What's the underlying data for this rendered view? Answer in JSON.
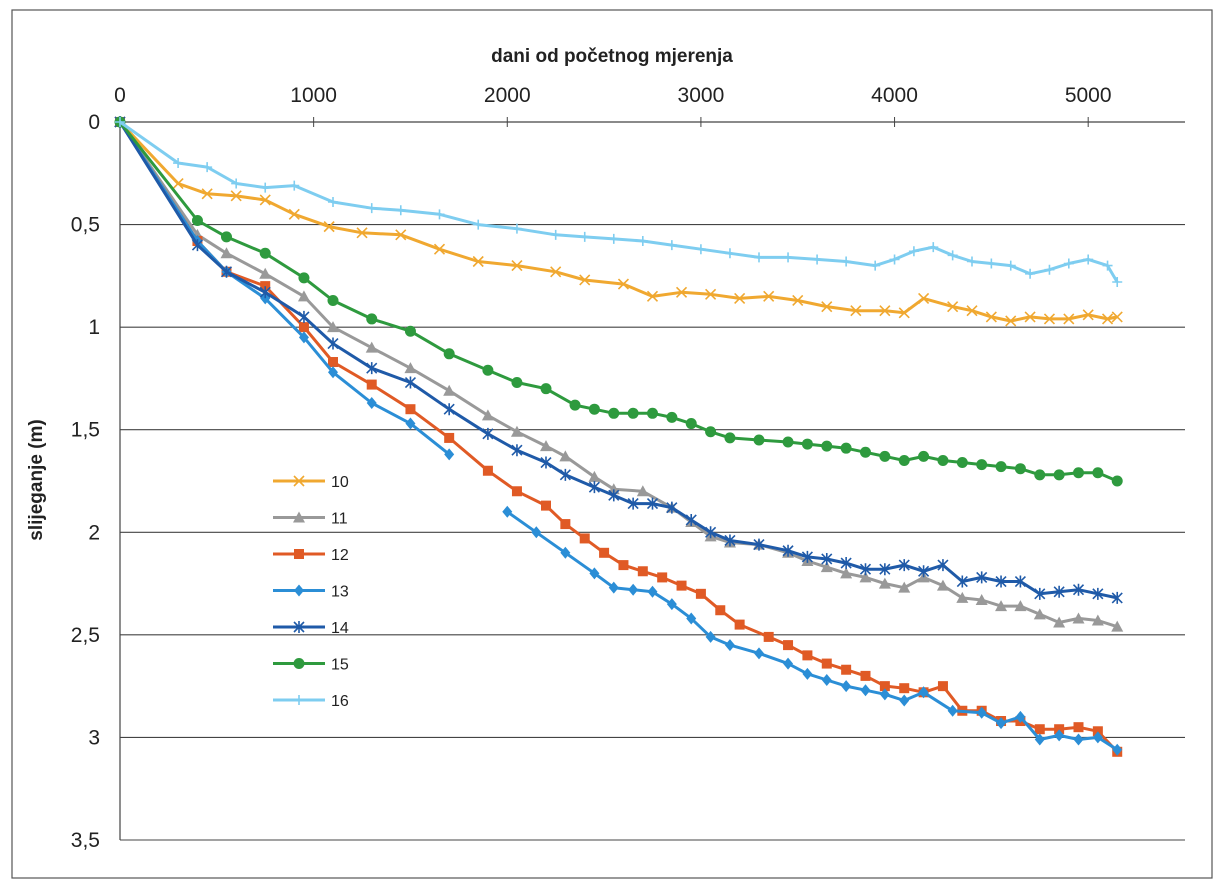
{
  "chart_data": {
    "type": "line",
    "title": "",
    "xlabel": "dani od početnog mjerenja",
    "ylabel": "slijeganje (m)",
    "xlim": [
      0,
      5500
    ],
    "ylim": [
      0,
      3.5
    ],
    "y_inverted": true,
    "x_axis_position": "top",
    "x_ticks": [
      0,
      1000,
      2000,
      3000,
      4000,
      5000
    ],
    "x_tick_labels": [
      "0",
      "1000",
      "2000",
      "3000",
      "4000",
      "5000"
    ],
    "y_ticks": [
      0,
      0.5,
      1,
      1.5,
      2,
      2.5,
      3,
      3.5
    ],
    "y_tick_labels": [
      "0",
      "0,5",
      "1",
      "1,5",
      "2",
      "2,5",
      "3",
      "3,5"
    ],
    "grid": "horizontal",
    "legend_position": "center-left",
    "series": [
      {
        "name": "10",
        "color": "#F0A830",
        "marker": "x",
        "x": [
          0,
          300,
          450,
          600,
          750,
          900,
          1080,
          1250,
          1450,
          1650,
          1850,
          2050,
          2250,
          2400,
          2600,
          2750,
          2900,
          3050,
          3200,
          3350,
          3500,
          3650,
          3800,
          3950,
          4050,
          4150,
          4300,
          4400,
          4500,
          4600,
          4700,
          4800,
          4900,
          5000,
          5100,
          5150
        ],
        "y": [
          0,
          0.3,
          0.35,
          0.36,
          0.38,
          0.45,
          0.51,
          0.54,
          0.55,
          0.62,
          0.68,
          0.7,
          0.73,
          0.77,
          0.79,
          0.85,
          0.83,
          0.84,
          0.86,
          0.85,
          0.87,
          0.9,
          0.92,
          0.92,
          0.93,
          0.86,
          0.9,
          0.92,
          0.95,
          0.97,
          0.95,
          0.96,
          0.96,
          0.94,
          0.96,
          0.95
        ]
      },
      {
        "name": "11",
        "color": "#999999",
        "marker": "triangle",
        "x": [
          0,
          400,
          550,
          750,
          950,
          1100,
          1300,
          1500,
          1700,
          1900,
          2050,
          2200,
          2300,
          2450,
          2550,
          2700,
          2850,
          2950,
          3050,
          3150,
          3300,
          3450,
          3550,
          3650,
          3750,
          3850,
          3950,
          4050,
          4150,
          4250,
          4350,
          4450,
          4550,
          4650,
          4750,
          4850,
          4950,
          5050,
          5150
        ],
        "y": [
          0,
          0.55,
          0.64,
          0.74,
          0.85,
          1.0,
          1.1,
          1.2,
          1.31,
          1.43,
          1.51,
          1.58,
          1.63,
          1.73,
          1.79,
          1.8,
          1.88,
          1.95,
          2.02,
          2.05,
          2.06,
          2.1,
          2.14,
          2.17,
          2.2,
          2.22,
          2.25,
          2.27,
          2.22,
          2.26,
          2.32,
          2.33,
          2.36,
          2.36,
          2.4,
          2.44,
          2.42,
          2.43,
          2.46
        ]
      },
      {
        "name": "12",
        "color": "#E05A25",
        "marker": "square",
        "x": [
          0,
          400,
          550,
          750,
          950,
          1100,
          1300,
          1500,
          1700,
          1900,
          2050,
          2200,
          2300,
          2400,
          2500,
          2600,
          2700,
          2800,
          2900,
          3000,
          3100,
          3200,
          3350,
          3450,
          3550,
          3650,
          3750,
          3850,
          3950,
          4050,
          4150,
          4250,
          4350,
          4450,
          4550,
          4650,
          4750,
          4850,
          4950,
          5050,
          5150
        ],
        "y": [
          0,
          0.58,
          0.73,
          0.8,
          1.0,
          1.17,
          1.28,
          1.4,
          1.54,
          1.7,
          1.8,
          1.87,
          1.96,
          2.03,
          2.1,
          2.16,
          2.19,
          2.22,
          2.26,
          2.3,
          2.38,
          2.45,
          2.51,
          2.55,
          2.6,
          2.64,
          2.67,
          2.7,
          2.75,
          2.76,
          2.78,
          2.75,
          2.87,
          2.87,
          2.92,
          2.92,
          2.96,
          2.96,
          2.95,
          2.97,
          3.07
        ]
      },
      {
        "name": "13",
        "color": "#2B8ED6",
        "marker": "diamond",
        "segments": [
          {
            "x": [
              0,
              400,
              550,
              750,
              950,
              1100,
              1300,
              1500,
              1700
            ],
            "y": [
              0,
              0.58,
              0.73,
              0.86,
              1.05,
              1.22,
              1.37,
              1.47,
              1.62
            ]
          },
          {
            "x": [
              2000,
              2150,
              2300,
              2450,
              2550,
              2650,
              2750,
              2850,
              2950,
              3050,
              3150,
              3300,
              3450,
              3550,
              3650,
              3750,
              3850,
              3950,
              4050,
              4150,
              4300,
              4450,
              4550,
              4650,
              4750,
              4850,
              4950,
              5050,
              5150
            ],
            "y": [
              1.9,
              2.0,
              2.1,
              2.2,
              2.27,
              2.28,
              2.29,
              2.35,
              2.42,
              2.51,
              2.55,
              2.59,
              2.64,
              2.69,
              2.72,
              2.75,
              2.77,
              2.79,
              2.82,
              2.78,
              2.87,
              2.88,
              2.93,
              2.9,
              3.01,
              2.99,
              3.01,
              3.0,
              3.06
            ]
          }
        ]
      },
      {
        "name": "14",
        "color": "#1F5AA8",
        "marker": "asterisk",
        "x": [
          0,
          400,
          550,
          750,
          950,
          1100,
          1300,
          1500,
          1700,
          1900,
          2050,
          2200,
          2300,
          2450,
          2550,
          2650,
          2750,
          2850,
          2950,
          3050,
          3150,
          3300,
          3450,
          3550,
          3650,
          3750,
          3850,
          3950,
          4050,
          4150,
          4250,
          4350,
          4450,
          4550,
          4650,
          4750,
          4850,
          4950,
          5050,
          5150
        ],
        "y": [
          0,
          0.6,
          0.73,
          0.83,
          0.95,
          1.08,
          1.2,
          1.27,
          1.4,
          1.52,
          1.6,
          1.66,
          1.72,
          1.78,
          1.82,
          1.86,
          1.86,
          1.88,
          1.94,
          2.0,
          2.04,
          2.06,
          2.09,
          2.12,
          2.13,
          2.15,
          2.18,
          2.18,
          2.16,
          2.19,
          2.16,
          2.24,
          2.22,
          2.24,
          2.24,
          2.3,
          2.29,
          2.28,
          2.3,
          2.32
        ]
      },
      {
        "name": "15",
        "color": "#2E9A3E",
        "marker": "circle",
        "x": [
          0,
          400,
          550,
          750,
          950,
          1100,
          1300,
          1500,
          1700,
          1900,
          2050,
          2200,
          2350,
          2450,
          2550,
          2650,
          2750,
          2850,
          2950,
          3050,
          3150,
          3300,
          3450,
          3550,
          3650,
          3750,
          3850,
          3950,
          4050,
          4150,
          4250,
          4350,
          4450,
          4550,
          4650,
          4750,
          4850,
          4950,
          5050,
          5150
        ],
        "y": [
          0,
          0.48,
          0.56,
          0.64,
          0.76,
          0.87,
          0.96,
          1.02,
          1.13,
          1.21,
          1.27,
          1.3,
          1.38,
          1.4,
          1.42,
          1.42,
          1.42,
          1.44,
          1.47,
          1.51,
          1.54,
          1.55,
          1.56,
          1.57,
          1.58,
          1.59,
          1.61,
          1.63,
          1.65,
          1.63,
          1.65,
          1.66,
          1.67,
          1.68,
          1.69,
          1.72,
          1.72,
          1.71,
          1.71,
          1.75
        ]
      },
      {
        "name": "16",
        "color": "#7ECDF0",
        "marker": "plus",
        "x": [
          0,
          300,
          450,
          600,
          750,
          900,
          1100,
          1300,
          1450,
          1650,
          1850,
          2050,
          2250,
          2400,
          2550,
          2700,
          2850,
          3000,
          3150,
          3300,
          3450,
          3600,
          3750,
          3900,
          4000,
          4100,
          4200,
          4300,
          4400,
          4500,
          4600,
          4700,
          4800,
          4900,
          5000,
          5100,
          5150
        ],
        "y": [
          0,
          0.2,
          0.22,
          0.3,
          0.32,
          0.31,
          0.39,
          0.42,
          0.43,
          0.45,
          0.5,
          0.52,
          0.55,
          0.56,
          0.57,
          0.58,
          0.6,
          0.62,
          0.64,
          0.66,
          0.66,
          0.67,
          0.68,
          0.7,
          0.67,
          0.63,
          0.61,
          0.65,
          0.68,
          0.69,
          0.7,
          0.74,
          0.72,
          0.69,
          0.67,
          0.7,
          0.78
        ]
      }
    ]
  }
}
